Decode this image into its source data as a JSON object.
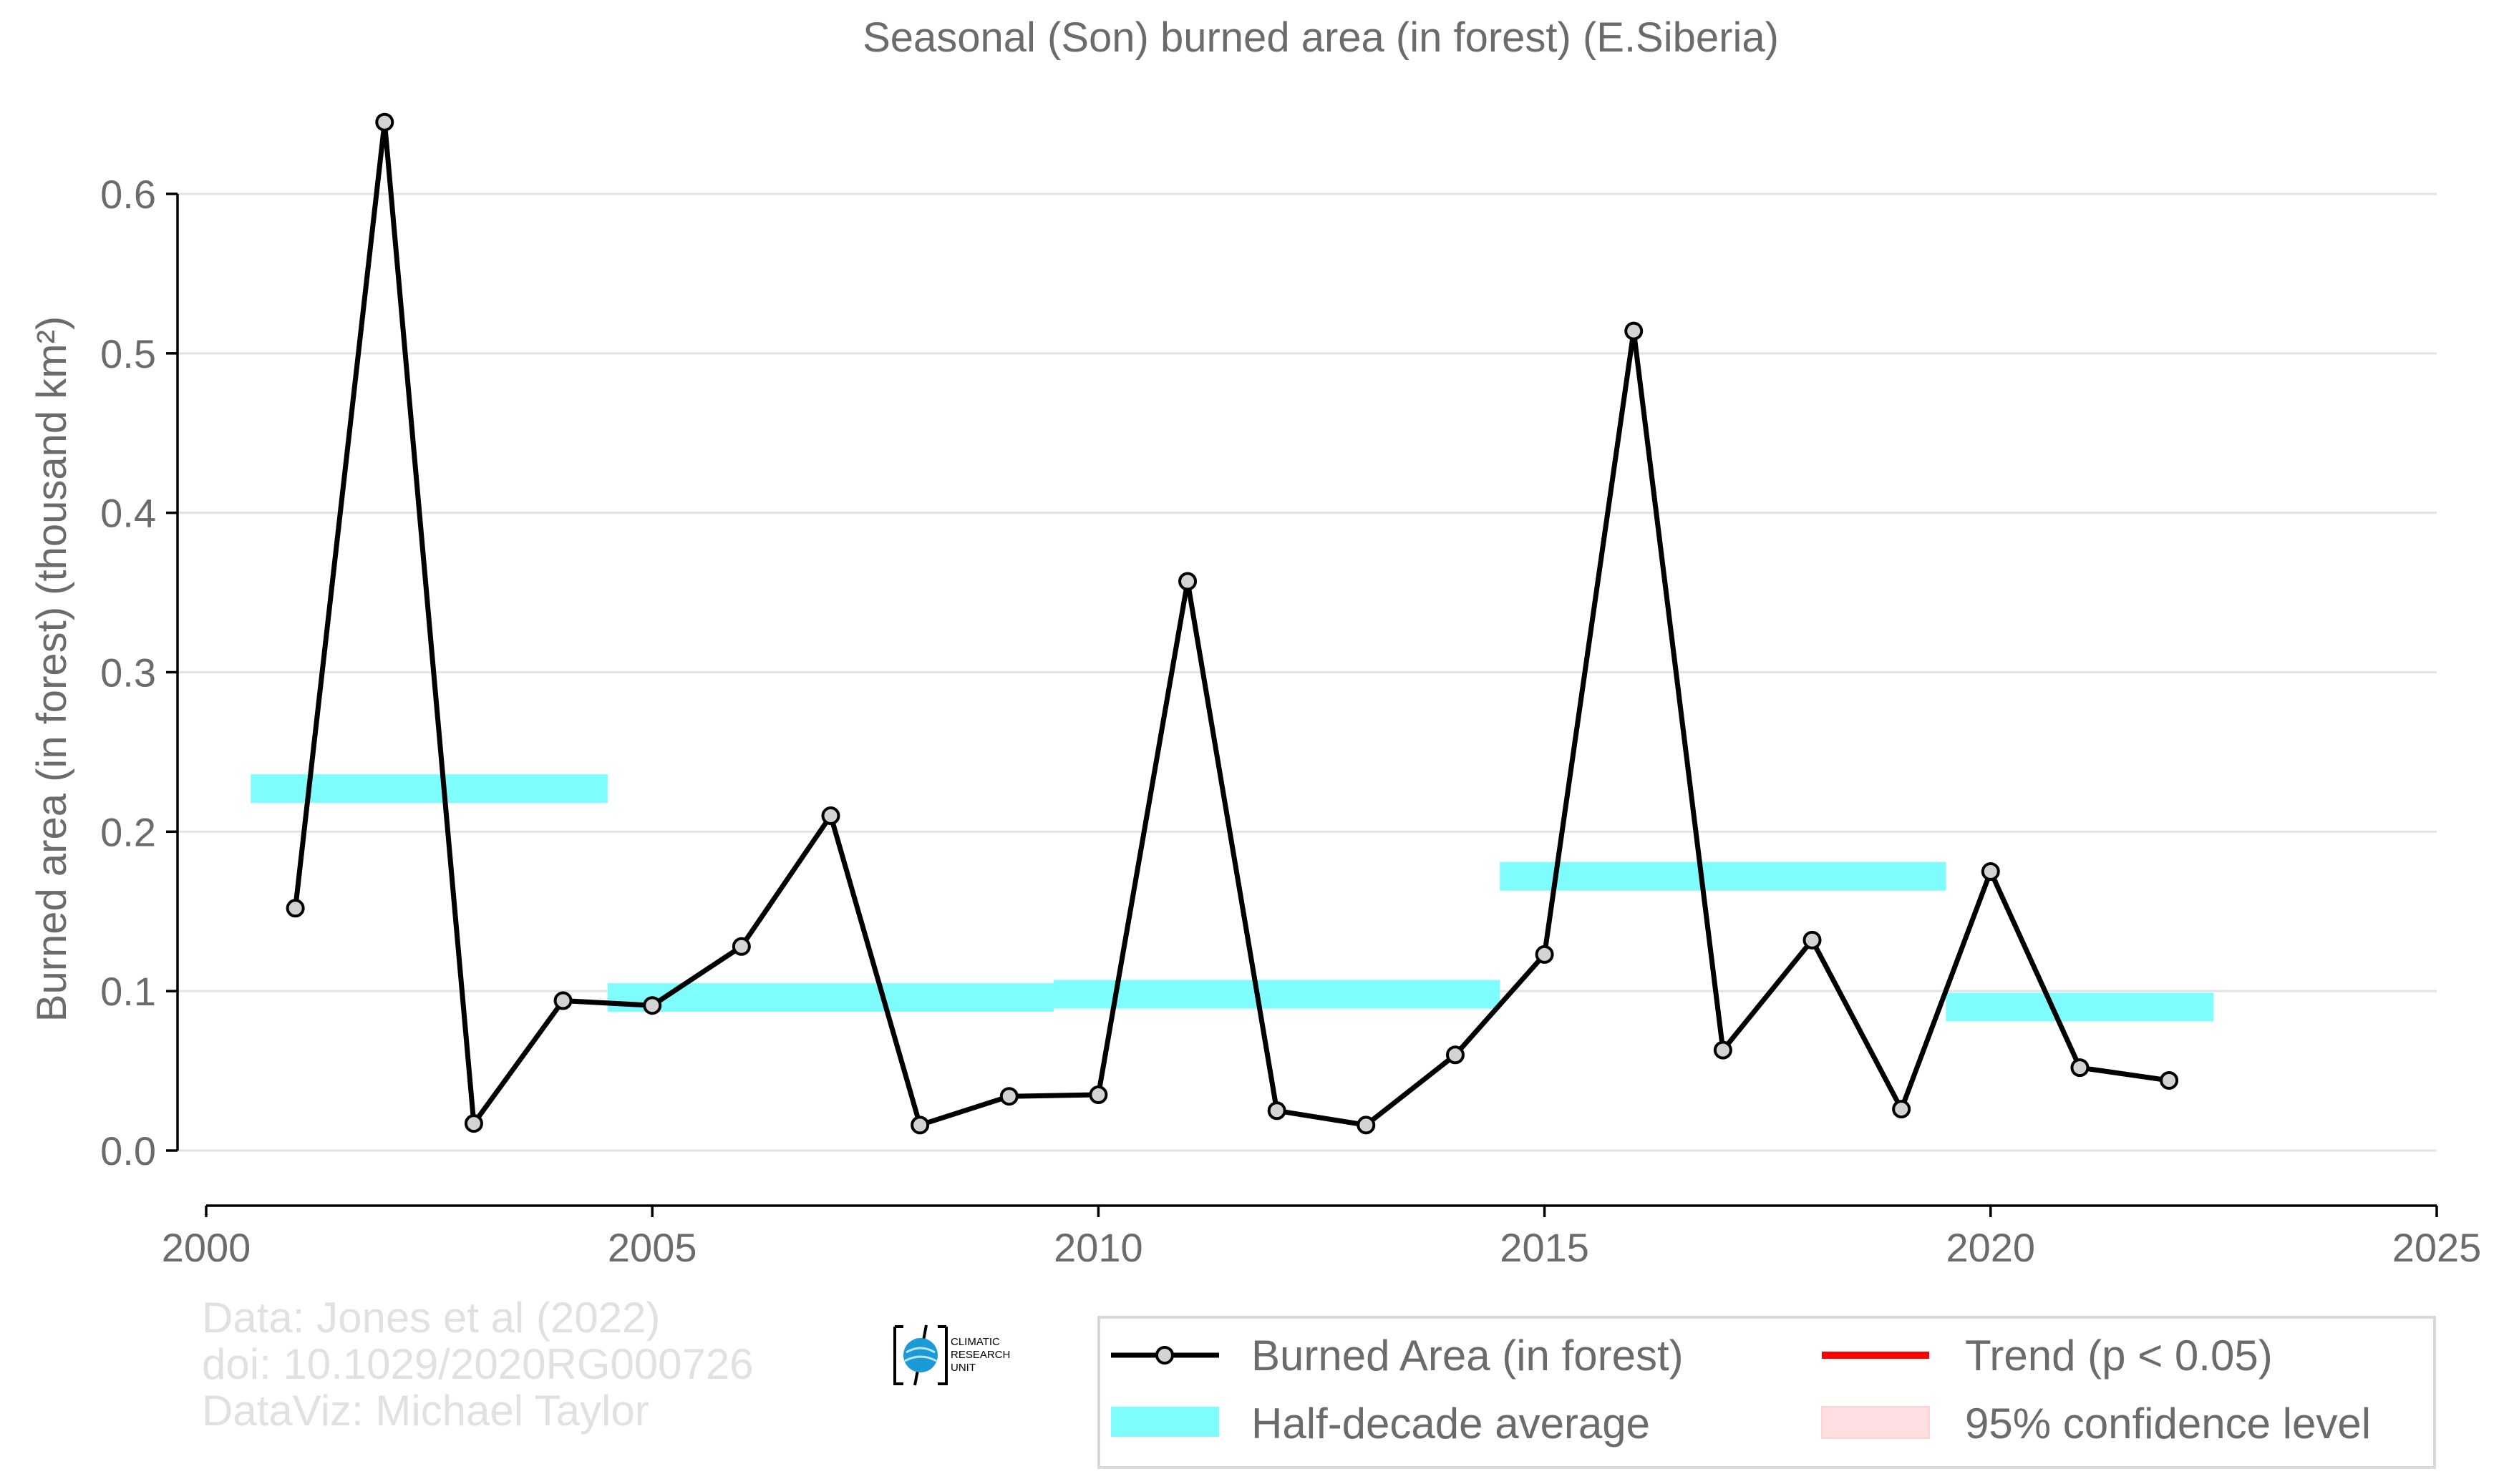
{
  "chart_data": {
    "type": "line",
    "title": "Seasonal (Son) burned area (in forest) (E.Siberia)",
    "ylabel": "Burned area (in forest) (thousand km²)",
    "xlabel": "",
    "xlim": [
      2000,
      2025
    ],
    "ylim": [
      -0.035,
      0.66
    ],
    "x_ticks": [
      2000,
      2005,
      2010,
      2015,
      2020,
      2025
    ],
    "y_ticks": [
      0.0,
      0.1,
      0.2,
      0.3,
      0.4,
      0.5,
      0.6
    ],
    "y_tick_labels": [
      "0.0",
      "0.1",
      "0.2",
      "0.3",
      "0.4",
      "0.5",
      "0.6"
    ],
    "grid": true,
    "series": [
      {
        "name": "Burned Area (in forest)",
        "color": "#000000",
        "marker_fill": "#d3d3d3",
        "x": [
          2001,
          2002,
          2003,
          2004,
          2005,
          2006,
          2007,
          2008,
          2009,
          2010,
          2011,
          2012,
          2013,
          2014,
          2015,
          2016,
          2017,
          2018,
          2019,
          2020,
          2021,
          2022
        ],
        "y": [
          0.152,
          0.645,
          0.017,
          0.094,
          0.091,
          0.128,
          0.21,
          0.016,
          0.034,
          0.035,
          0.357,
          0.025,
          0.016,
          0.06,
          0.123,
          0.514,
          0.063,
          0.132,
          0.026,
          0.175,
          0.052,
          0.044
        ]
      }
    ],
    "half_decade_average": {
      "name": "Half-decade average",
      "color": "#7ffcfd",
      "segments": [
        {
          "x_start": 2000.5,
          "x_end": 2004.5,
          "value": 0.227
        },
        {
          "x_start": 2004.5,
          "x_end": 2009.5,
          "value": 0.096
        },
        {
          "x_start": 2009.5,
          "x_end": 2014.5,
          "value": 0.098
        },
        {
          "x_start": 2014.5,
          "x_end": 2019.5,
          "value": 0.172
        },
        {
          "x_start": 2019.5,
          "x_end": 2022.5,
          "value": 0.09
        }
      ]
    },
    "legend": {
      "placement": "bottom-right",
      "entries": [
        {
          "label": "Burned Area (in forest)",
          "kind": "line-marker",
          "color": "#000000"
        },
        {
          "label": "Trend (p < 0.05)",
          "kind": "line",
          "color": "#ff0000"
        },
        {
          "label": "Half-decade average",
          "kind": "band",
          "color": "#7ffcfd"
        },
        {
          "label": "95% confidence level",
          "kind": "band",
          "color": "#ffdfdf"
        }
      ]
    },
    "credits": [
      "Data: Jones et al (2022)",
      "doi: 10.1029/2020RG000726",
      "DataViz: Michael Taylor"
    ],
    "logo_text": [
      "CLIMATIC",
      "RESEARCH",
      "UNIT"
    ]
  }
}
